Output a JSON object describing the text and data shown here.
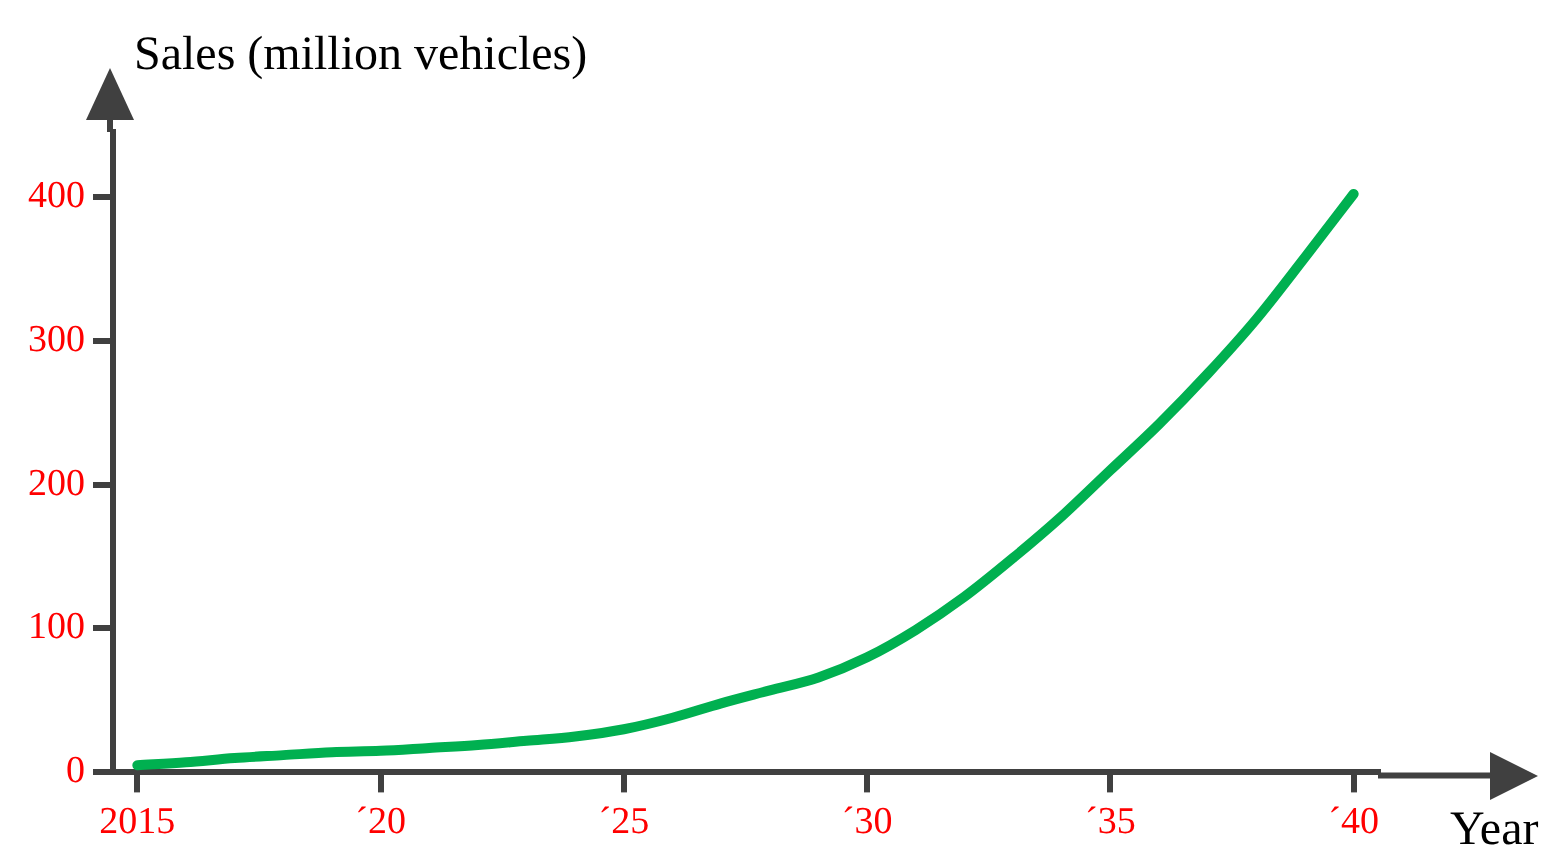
{
  "chart_data": {
    "type": "line",
    "xlabel": "Year",
    "ylabel": "Sales (million vehicles)",
    "categories": [
      "2015",
      null,
      null,
      null,
      null,
      "´20",
      null,
      null,
      null,
      null,
      "´25",
      null,
      null,
      null,
      null,
      "´30",
      null,
      null,
      null,
      null,
      "´35",
      null,
      null,
      null,
      null,
      "´40"
    ],
    "series": [
      {
        "color": "#00b050",
        "values": [
          5,
          7,
          10,
          12,
          14,
          15,
          17,
          19,
          22,
          25,
          30,
          38,
          48,
          57,
          66,
          80,
          99,
          122,
          149,
          178,
          210,
          242,
          277,
          315,
          358,
          402
        ]
      }
    ],
    "ylim": [
      0,
      445
    ],
    "yticks": [
      0,
      100,
      200,
      300,
      400
    ],
    "grid": false,
    "legend": false,
    "marker": "none",
    "line_style": "solid"
  }
}
